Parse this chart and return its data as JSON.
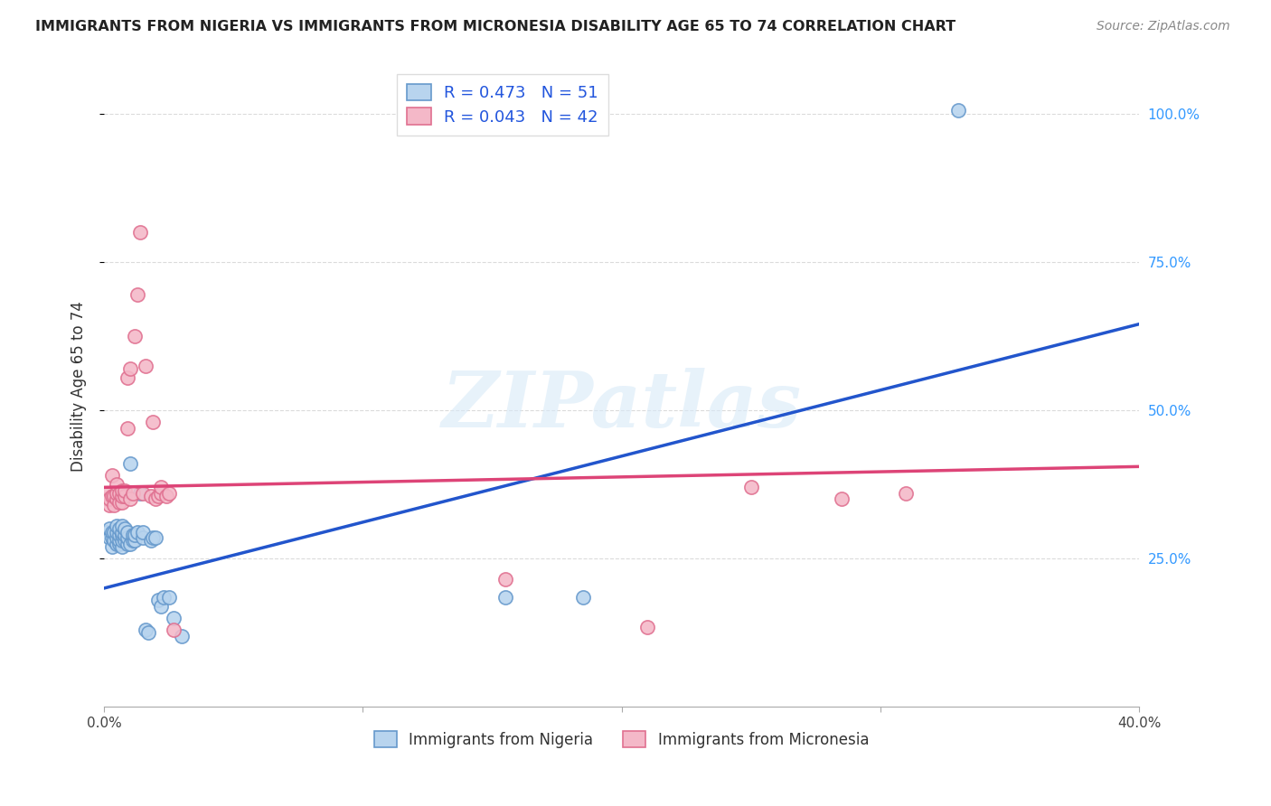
{
  "title": "IMMIGRANTS FROM NIGERIA VS IMMIGRANTS FROM MICRONESIA DISABILITY AGE 65 TO 74 CORRELATION CHART",
  "source": "Source: ZipAtlas.com",
  "ylabel": "Disability Age 65 to 74",
  "background_color": "#ffffff",
  "grid_color": "#cccccc",
  "watermark": "ZIPatlas",
  "nigeria_color": "#b8d4ee",
  "nigeria_edge": "#6699cc",
  "micronesia_color": "#f4b8c8",
  "micronesia_edge": "#e07090",
  "xmin": 0.0,
  "xmax": 0.4,
  "ymin": 0.0,
  "ymax": 1.08,
  "yticks": [
    0.25,
    0.5,
    0.75,
    1.0
  ],
  "ytick_labels": [
    "25.0%",
    "50.0%",
    "75.0%",
    "100.0%"
  ],
  "nigeria_R": 0.473,
  "nigeria_N": 51,
  "micronesia_R": 0.043,
  "micronesia_N": 42,
  "nigeria_x": [
    0.001,
    0.002,
    0.002,
    0.003,
    0.003,
    0.003,
    0.004,
    0.004,
    0.005,
    0.005,
    0.005,
    0.005,
    0.006,
    0.006,
    0.006,
    0.006,
    0.007,
    0.007,
    0.007,
    0.007,
    0.007,
    0.008,
    0.008,
    0.008,
    0.009,
    0.009,
    0.009,
    0.01,
    0.01,
    0.011,
    0.011,
    0.012,
    0.012,
    0.013,
    0.014,
    0.015,
    0.015,
    0.016,
    0.017,
    0.018,
    0.019,
    0.02,
    0.021,
    0.022,
    0.023,
    0.025,
    0.027,
    0.03,
    0.155,
    0.185,
    0.33
  ],
  "nigeria_y": [
    0.295,
    0.285,
    0.3,
    0.27,
    0.285,
    0.295,
    0.28,
    0.295,
    0.275,
    0.285,
    0.295,
    0.305,
    0.275,
    0.28,
    0.29,
    0.3,
    0.27,
    0.28,
    0.29,
    0.295,
    0.305,
    0.28,
    0.29,
    0.3,
    0.275,
    0.285,
    0.295,
    0.275,
    0.41,
    0.28,
    0.29,
    0.28,
    0.29,
    0.295,
    0.36,
    0.285,
    0.295,
    0.13,
    0.125,
    0.28,
    0.285,
    0.285,
    0.18,
    0.17,
    0.185,
    0.185,
    0.15,
    0.12,
    0.185,
    0.185,
    1.005
  ],
  "micronesia_x": [
    0.001,
    0.001,
    0.002,
    0.002,
    0.003,
    0.003,
    0.004,
    0.004,
    0.005,
    0.005,
    0.005,
    0.006,
    0.006,
    0.007,
    0.007,
    0.007,
    0.008,
    0.008,
    0.009,
    0.009,
    0.01,
    0.01,
    0.011,
    0.012,
    0.013,
    0.014,
    0.015,
    0.016,
    0.018,
    0.019,
    0.02,
    0.021,
    0.022,
    0.022,
    0.024,
    0.025,
    0.027,
    0.155,
    0.21,
    0.25,
    0.285,
    0.31
  ],
  "micronesia_y": [
    0.35,
    0.36,
    0.34,
    0.35,
    0.39,
    0.355,
    0.34,
    0.355,
    0.35,
    0.36,
    0.375,
    0.345,
    0.36,
    0.345,
    0.355,
    0.365,
    0.355,
    0.365,
    0.47,
    0.555,
    0.57,
    0.35,
    0.36,
    0.625,
    0.695,
    0.8,
    0.36,
    0.575,
    0.355,
    0.48,
    0.35,
    0.355,
    0.36,
    0.37,
    0.355,
    0.36,
    0.13,
    0.215,
    0.135,
    0.37,
    0.35,
    0.36
  ],
  "nigeria_trendline_x": [
    0.0,
    0.4
  ],
  "nigeria_trendline_y": [
    0.2,
    0.645
  ],
  "micronesia_trendline_x": [
    0.0,
    0.4
  ],
  "micronesia_trendline_y": [
    0.37,
    0.405
  ],
  "legend_nigeria_label": "R = 0.473   N = 51",
  "legend_micronesia_label": "R = 0.043   N = 42",
  "legend_nigeria_bottom": "Immigrants from Nigeria",
  "legend_micronesia_bottom": "Immigrants from Micronesia",
  "xtick_positions": [
    0.0,
    0.1,
    0.2,
    0.3,
    0.4
  ],
  "xtick_show_labels": [
    true,
    false,
    false,
    false,
    true
  ],
  "xtick_labels_all": [
    "0.0%",
    "",
    "",
    "",
    "40.0%"
  ]
}
